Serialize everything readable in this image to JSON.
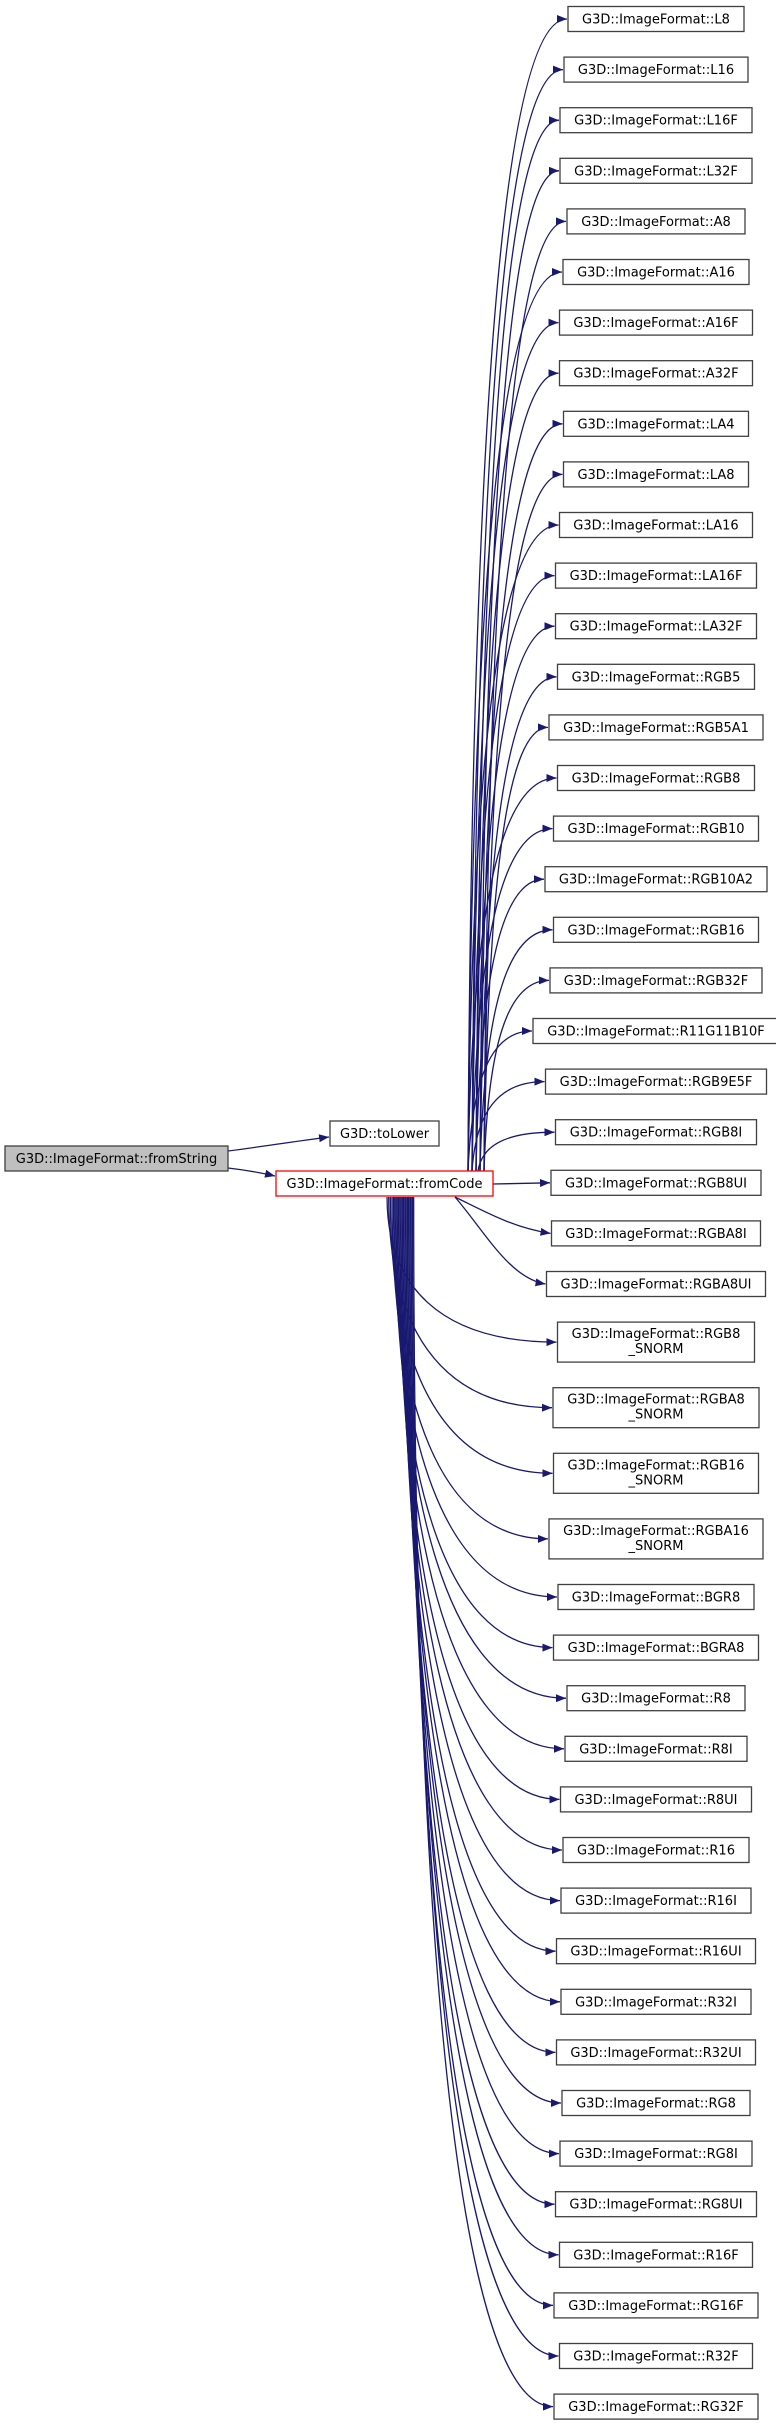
{
  "colors": {
    "edge": "#191970",
    "root_fill": "#bfbfbf",
    "focus_border": "#ff0000",
    "node_border": "#404040"
  },
  "root": {
    "label": [
      "G3D::ImageFormat::fromString"
    ]
  },
  "helper": {
    "label": [
      "G3D::toLower"
    ]
  },
  "focus": {
    "label": [
      "G3D::ImageFormat::fromCode"
    ]
  },
  "callees": [
    {
      "label": [
        "G3D::ImageFormat::L8"
      ]
    },
    {
      "label": [
        "G3D::ImageFormat::L16"
      ]
    },
    {
      "label": [
        "G3D::ImageFormat::L16F"
      ]
    },
    {
      "label": [
        "G3D::ImageFormat::L32F"
      ]
    },
    {
      "label": [
        "G3D::ImageFormat::A8"
      ]
    },
    {
      "label": [
        "G3D::ImageFormat::A16"
      ]
    },
    {
      "label": [
        "G3D::ImageFormat::A16F"
      ]
    },
    {
      "label": [
        "G3D::ImageFormat::A32F"
      ]
    },
    {
      "label": [
        "G3D::ImageFormat::LA4"
      ]
    },
    {
      "label": [
        "G3D::ImageFormat::LA8"
      ]
    },
    {
      "label": [
        "G3D::ImageFormat::LA16"
      ]
    },
    {
      "label": [
        "G3D::ImageFormat::LA16F"
      ]
    },
    {
      "label": [
        "G3D::ImageFormat::LA32F"
      ]
    },
    {
      "label": [
        "G3D::ImageFormat::RGB5"
      ]
    },
    {
      "label": [
        "G3D::ImageFormat::RGB5A1"
      ]
    },
    {
      "label": [
        "G3D::ImageFormat::RGB8"
      ]
    },
    {
      "label": [
        "G3D::ImageFormat::RGB10"
      ]
    },
    {
      "label": [
        "G3D::ImageFormat::RGB10A2"
      ]
    },
    {
      "label": [
        "G3D::ImageFormat::RGB16"
      ]
    },
    {
      "label": [
        "G3D::ImageFormat::RGB32F"
      ]
    },
    {
      "label": [
        "G3D::ImageFormat::R11G11B10F"
      ]
    },
    {
      "label": [
        "G3D::ImageFormat::RGB9E5F"
      ]
    },
    {
      "label": [
        "G3D::ImageFormat::RGB8I"
      ]
    },
    {
      "label": [
        "G3D::ImageFormat::RGB8UI"
      ]
    },
    {
      "label": [
        "G3D::ImageFormat::RGBA8I"
      ]
    },
    {
      "label": [
        "G3D::ImageFormat::RGBA8UI"
      ]
    },
    {
      "label": [
        "G3D::ImageFormat::RGB8",
        "_SNORM"
      ]
    },
    {
      "label": [
        "G3D::ImageFormat::RGBA8",
        "_SNORM"
      ]
    },
    {
      "label": [
        "G3D::ImageFormat::RGB16",
        "_SNORM"
      ]
    },
    {
      "label": [
        "G3D::ImageFormat::RGBA16",
        "_SNORM"
      ]
    },
    {
      "label": [
        "G3D::ImageFormat::BGR8"
      ]
    },
    {
      "label": [
        "G3D::ImageFormat::BGRA8"
      ]
    },
    {
      "label": [
        "G3D::ImageFormat::R8"
      ]
    },
    {
      "label": [
        "G3D::ImageFormat::R8I"
      ]
    },
    {
      "label": [
        "G3D::ImageFormat::R8UI"
      ]
    },
    {
      "label": [
        "G3D::ImageFormat::R16"
      ]
    },
    {
      "label": [
        "G3D::ImageFormat::R16I"
      ]
    },
    {
      "label": [
        "G3D::ImageFormat::R16UI"
      ]
    },
    {
      "label": [
        "G3D::ImageFormat::R32I"
      ]
    },
    {
      "label": [
        "G3D::ImageFormat::R32UI"
      ]
    },
    {
      "label": [
        "G3D::ImageFormat::RG8"
      ]
    },
    {
      "label": [
        "G3D::ImageFormat::RG8I"
      ]
    },
    {
      "label": [
        "G3D::ImageFormat::RG8UI"
      ]
    },
    {
      "label": [
        "G3D::ImageFormat::R16F"
      ]
    },
    {
      "label": [
        "G3D::ImageFormat::RG16F"
      ]
    },
    {
      "label": [
        "G3D::ImageFormat::R32F"
      ]
    },
    {
      "label": [
        "G3D::ImageFormat::RG32F"
      ]
    }
  ]
}
